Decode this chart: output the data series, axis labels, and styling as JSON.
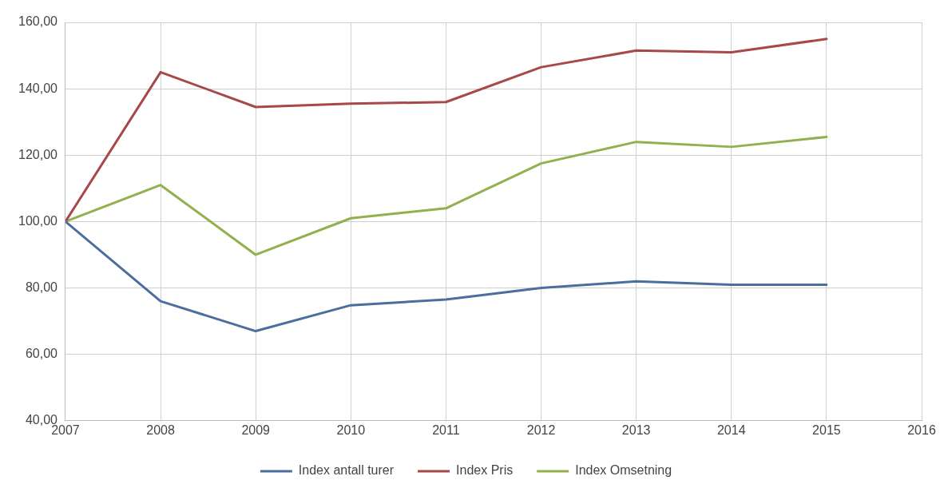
{
  "chart_data": {
    "type": "line",
    "x": [
      2007,
      2008,
      2009,
      2010,
      2011,
      2012,
      2013,
      2014,
      2015
    ],
    "series": [
      {
        "name": "Index antall turer",
        "color": "#4a6f9e",
        "values": [
          100,
          76,
          67,
          74.8,
          76.5,
          80,
          82,
          81,
          81
        ]
      },
      {
        "name": "Index Pris",
        "color": "#a84848",
        "values": [
          100,
          145,
          134.5,
          135.5,
          136,
          146.5,
          151.5,
          151,
          155
        ]
      },
      {
        "name": "Index Omsetning",
        "color": "#93b04f",
        "values": [
          100,
          111,
          90,
          101,
          104,
          117.5,
          124,
          122.5,
          125.5
        ]
      }
    ],
    "xlim": [
      2007,
      2016
    ],
    "xticks": [
      2007,
      2008,
      2009,
      2010,
      2011,
      2012,
      2013,
      2014,
      2015,
      2016
    ],
    "ylim": [
      40,
      160
    ],
    "yticks": [
      {
        "value": 40,
        "label": "40,00"
      },
      {
        "value": 60,
        "label": "60,00"
      },
      {
        "value": 80,
        "label": "80,00"
      },
      {
        "value": 100,
        "label": "100,00"
      },
      {
        "value": 120,
        "label": "120,00"
      },
      {
        "value": 140,
        "label": "140,00"
      },
      {
        "value": 160,
        "label": "160,00"
      }
    ],
    "grid": true,
    "legend": "bottom",
    "marker": "none",
    "line_style": "solid"
  }
}
